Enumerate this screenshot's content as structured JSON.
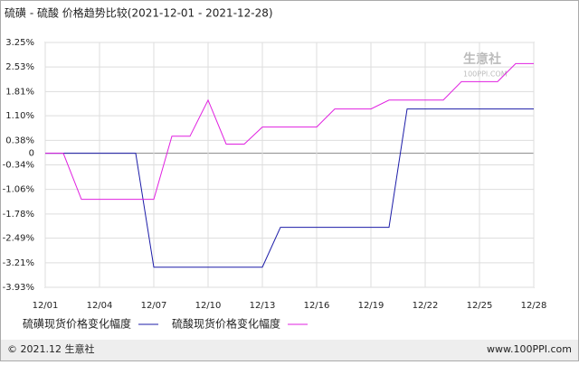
{
  "chart_data": {
    "type": "line",
    "title": "硫磺 - 硫酸 价格趋势比较(2021-12-01 - 2021-12-28)",
    "categories": [
      "12/01",
      null,
      null,
      "12/04",
      null,
      null,
      "12/07",
      null,
      null,
      "12/10",
      null,
      null,
      "12/13",
      null,
      null,
      "12/16",
      null,
      null,
      "12/19",
      null,
      null,
      "12/22",
      null,
      null,
      "12/25",
      null,
      null,
      "12/28"
    ],
    "series": [
      {
        "name": "硫磺现货价格变化幅度",
        "color": "#1c1ca8",
        "values": [
          0,
          0,
          0,
          0,
          0,
          0,
          -3.34,
          -3.34,
          -3.34,
          -3.34,
          -3.34,
          -3.34,
          -3.34,
          -2.17,
          -2.17,
          -2.17,
          -2.17,
          -2.17,
          -2.17,
          -2.17,
          1.3,
          1.3,
          1.3,
          1.3,
          1.3,
          1.3,
          1.3,
          1.3
        ]
      },
      {
        "name": "硫酸现货价格变化幅度",
        "color": "#e020e0",
        "values": [
          0,
          0,
          -1.35,
          -1.35,
          -1.35,
          -1.35,
          -1.35,
          0.5,
          0.5,
          1.56,
          0.27,
          0.27,
          0.77,
          0.77,
          0.77,
          0.77,
          1.3,
          1.3,
          1.3,
          1.56,
          1.56,
          1.56,
          1.56,
          2.1,
          2.1,
          2.1,
          2.63,
          2.63
        ]
      }
    ],
    "ylim": [
      -3.93,
      3.25
    ],
    "yticks": [
      {
        "value": 3.25,
        "label": "3.25%"
      },
      {
        "value": 2.53,
        "label": "2.53%"
      },
      {
        "value": 1.81,
        "label": "1.81%"
      },
      {
        "value": 1.1,
        "label": "1.10%"
      },
      {
        "value": 0.38,
        "label": "0.38%"
      },
      0,
      {
        "value": -0.34,
        "label": "-0.34%"
      },
      {
        "value": -1.06,
        "label": "-1.06%"
      },
      {
        "value": -1.78,
        "label": "-1.78%"
      },
      {
        "value": -2.49,
        "label": "-2.49%"
      },
      {
        "value": -3.21,
        "label": "-3.21%"
      },
      {
        "value": -3.93,
        "label": "-3.93%"
      }
    ],
    "grid": true,
    "watermark": [
      "生意社",
      "100PPI.COM"
    ],
    "footer": {
      "left": "© 2021.12 生意社",
      "right": "www.100PPI.com"
    }
  }
}
